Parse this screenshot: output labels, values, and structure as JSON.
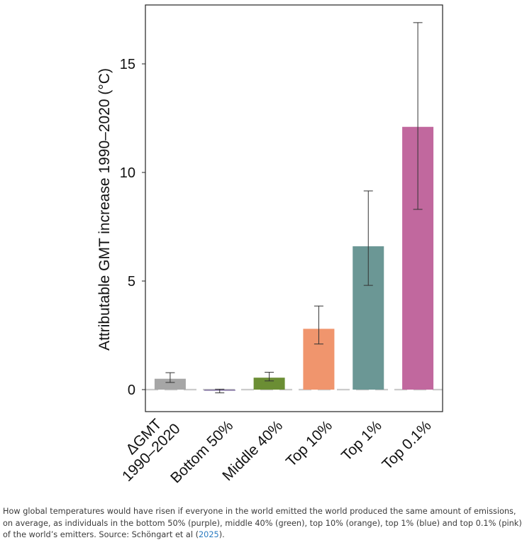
{
  "chart_data": {
    "type": "bar",
    "ylabel": "Attributable GMT increase 1990–2020 (°C)",
    "xlabel": "",
    "ylim": [
      -1,
      17.8
    ],
    "yticks": [
      0,
      5,
      10,
      15
    ],
    "grid": false,
    "categories": [
      "ΔGMT\n1990–2020",
      "Bottom 50%",
      "Middle 40%",
      "Top 10%",
      "Top 1%",
      "Top 0.1%"
    ],
    "values": [
      0.5,
      -0.05,
      0.55,
      2.8,
      6.6,
      12.1
    ],
    "error_low": [
      0.33,
      -0.15,
      0.4,
      2.1,
      4.8,
      8.3
    ],
    "error_high": [
      0.78,
      0.02,
      0.8,
      3.85,
      9.15,
      16.9
    ],
    "colors": [
      "#a6a6a6",
      "#7b6a9c",
      "#6b8e34",
      "#f0956d",
      "#6b9795",
      "#c1689e"
    ],
    "zero_line_color": "#cccccc"
  },
  "caption": {
    "text": "How global temperatures would have risen if everyone in the world emitted the world produced the same amount of emissions, on average, as individuals in the bottom 50% (purple), middle 40% (green), top 10% (orange), top 1% (blue) and top 0.1% (pink) of the world’s emitters. Source: Schöngart et al (",
    "link": "2025",
    "end": ")."
  }
}
